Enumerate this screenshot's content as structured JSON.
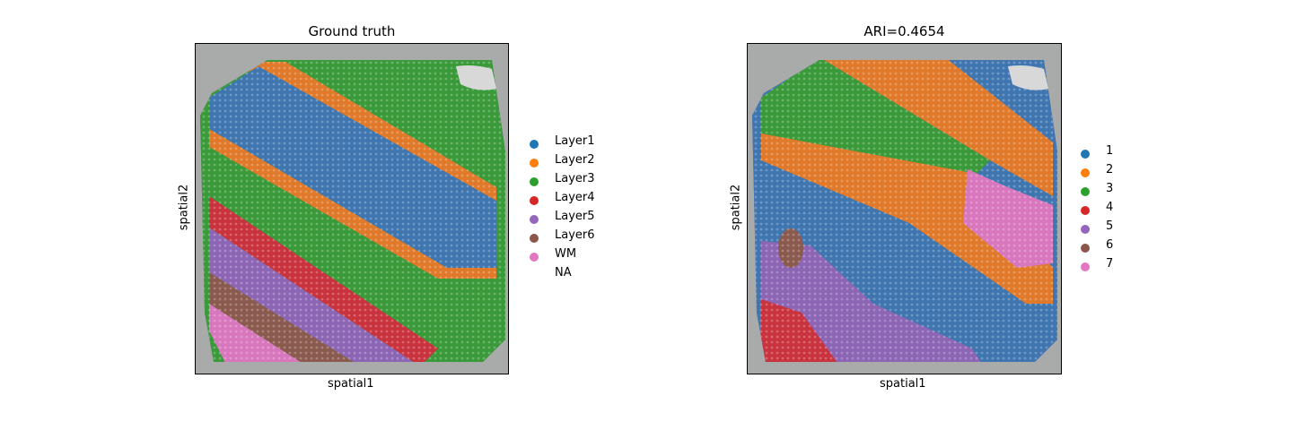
{
  "left_panel": {
    "title": "Ground truth",
    "xlabel": "spatial1",
    "ylabel": "spatial2",
    "legend": [
      {
        "label": "Layer1",
        "color": "#1f77b4"
      },
      {
        "label": "Layer2",
        "color": "#ff7f0e"
      },
      {
        "label": "Layer3",
        "color": "#2ca02c"
      },
      {
        "label": "Layer4",
        "color": "#d62728"
      },
      {
        "label": "Layer5",
        "color": "#9467bd"
      },
      {
        "label": "Layer6",
        "color": "#8c564b"
      },
      {
        "label": "WM",
        "color": "#e377c2"
      },
      {
        "label": "NA",
        "color": ""
      }
    ]
  },
  "right_panel": {
    "title": "ARI=0.4654",
    "xlabel": "spatial1",
    "ylabel": "spatial2",
    "legend": [
      {
        "label": "1",
        "color": "#1f77b4"
      },
      {
        "label": "2",
        "color": "#ff7f0e"
      },
      {
        "label": "3",
        "color": "#2ca02c"
      },
      {
        "label": "4",
        "color": "#d62728"
      },
      {
        "label": "5",
        "color": "#9467bd"
      },
      {
        "label": "6",
        "color": "#8c564b"
      },
      {
        "label": "7",
        "color": "#e377c2"
      }
    ]
  },
  "colors": {
    "tissue_background": "#a9abab",
    "tissue_edge": "#8a5a96"
  }
}
